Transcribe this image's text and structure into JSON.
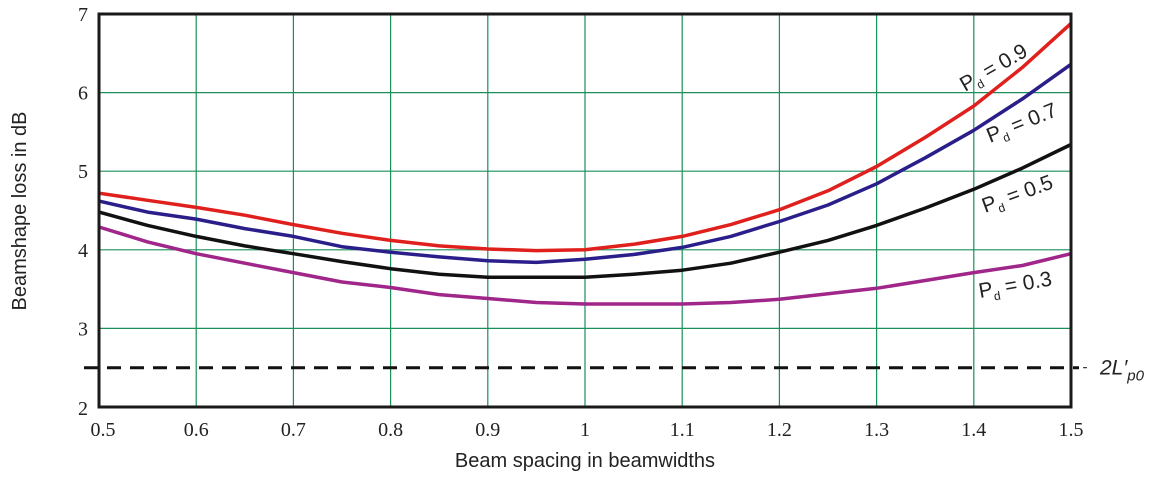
{
  "chart_data": {
    "type": "line",
    "title": "",
    "xlabel": "Beam spacing in beamwidths",
    "ylabel": "Beamshape loss in dB",
    "xlim": [
      0.5,
      1.5
    ],
    "ylim": [
      2,
      7
    ],
    "grid": true,
    "xticks": [
      "0.5",
      "0.6",
      "0.7",
      "0.8",
      "0.9",
      "1",
      "1.1",
      "1.2",
      "1.3",
      "1.4",
      "1.5"
    ],
    "yticks": [
      "2",
      "3",
      "4",
      "5",
      "6",
      "7"
    ],
    "x": [
      0.5,
      0.55,
      0.6,
      0.65,
      0.7,
      0.75,
      0.8,
      0.85,
      0.9,
      0.95,
      1.0,
      1.05,
      1.1,
      1.15,
      1.2,
      1.25,
      1.3,
      1.35,
      1.4,
      1.45,
      1.5
    ],
    "series": [
      {
        "name": "Pd = 0.9",
        "label_main": "P",
        "label_sub": "d",
        "label_rest": " = 0.9",
        "color": "#e0201c",
        "values": [
          4.72,
          4.63,
          4.54,
          4.44,
          4.32,
          4.21,
          4.12,
          4.05,
          4.01,
          3.99,
          4.0,
          4.07,
          4.17,
          4.32,
          4.51,
          4.75,
          5.06,
          5.43,
          5.83,
          6.32,
          6.88
        ]
      },
      {
        "name": "Pd = 0.7",
        "label_main": "P",
        "label_sub": "d",
        "label_rest": " = 0.7",
        "color": "#2a1f8a",
        "values": [
          4.62,
          4.48,
          4.39,
          4.27,
          4.17,
          4.04,
          3.97,
          3.91,
          3.86,
          3.84,
          3.88,
          3.94,
          4.03,
          4.17,
          4.36,
          4.57,
          4.84,
          5.17,
          5.52,
          5.92,
          6.36
        ]
      },
      {
        "name": "Pd = 0.5",
        "label_main": "P",
        "label_sub": "d",
        "label_rest": " = 0.5",
        "color": "#111111",
        "values": [
          4.48,
          4.31,
          4.17,
          4.05,
          3.95,
          3.85,
          3.76,
          3.69,
          3.65,
          3.65,
          3.65,
          3.69,
          3.74,
          3.83,
          3.97,
          4.12,
          4.31,
          4.53,
          4.77,
          5.04,
          5.34
        ]
      },
      {
        "name": "Pd = 0.3",
        "label_main": "P",
        "label_sub": "d",
        "label_rest": " = 0.3",
        "color": "#a0268a",
        "values": [
          4.29,
          4.1,
          3.95,
          3.83,
          3.71,
          3.59,
          3.52,
          3.43,
          3.38,
          3.33,
          3.31,
          3.31,
          3.31,
          3.33,
          3.37,
          3.44,
          3.51,
          3.61,
          3.71,
          3.8,
          3.95
        ]
      }
    ],
    "reference_line": {
      "y": 2.5,
      "style": "dashed",
      "label_main": "2L′",
      "label_sub": "p0",
      "color": "#111111"
    },
    "grid_color": "#1a8f5a"
  }
}
